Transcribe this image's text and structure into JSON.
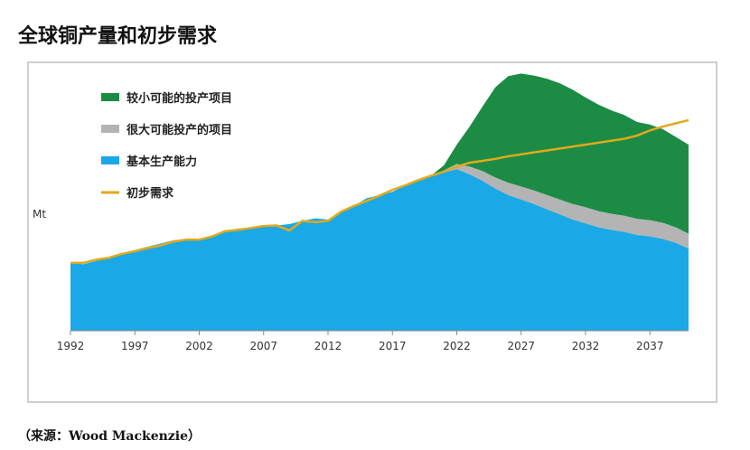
{
  "title": "全球铜产量和初步需求",
  "source": "（来源：Wood Mackenzie）",
  "colors": {
    "probable": "#1c8c45",
    "possible": "#b4b4b4",
    "base": "#1aa8e6",
    "demand": "#e2a91c",
    "axis": "#888888"
  },
  "chart_data": {
    "type": "area",
    "title": "全球铜产量和初步需求",
    "xlabel": "",
    "ylabel": "Mt",
    "xlim": [
      1992,
      2040
    ],
    "ylim": [
      0,
      40
    ],
    "xticks": [
      1992,
      1997,
      2002,
      2007,
      2012,
      2017,
      2022,
      2027,
      2032,
      2037
    ],
    "x": [
      1992,
      1993,
      1994,
      1995,
      1996,
      1997,
      1998,
      1999,
      2000,
      2001,
      2002,
      2003,
      2004,
      2005,
      2006,
      2007,
      2008,
      2009,
      2010,
      2011,
      2012,
      2013,
      2014,
      2015,
      2016,
      2017,
      2018,
      2019,
      2020,
      2021,
      2022,
      2023,
      2024,
      2025,
      2026,
      2027,
      2028,
      2029,
      2030,
      2031,
      2032,
      2033,
      2034,
      2035,
      2036,
      2037,
      2038,
      2039,
      2040
    ],
    "legend_position": "top-left",
    "series": [
      {
        "name": "较小可能的投产项目",
        "kind": "stacked-area",
        "values": [
          0,
          0,
          0,
          0,
          0,
          0,
          0,
          0,
          0,
          0,
          0,
          0,
          0,
          0,
          0,
          0,
          0,
          0,
          0,
          0,
          0,
          0,
          0,
          0,
          0,
          0,
          0,
          0,
          0,
          0.8,
          3.0,
          6.2,
          10.0,
          14.0,
          16.5,
          17.5,
          17.8,
          18.0,
          18.0,
          17.7,
          17.0,
          16.5,
          16.0,
          15.6,
          15.0,
          14.8,
          14.5,
          14.0,
          13.8
        ]
      },
      {
        "name": "很大可能投产的项目",
        "kind": "stacked-area",
        "values": [
          0,
          0,
          0,
          0,
          0,
          0,
          0,
          0,
          0,
          0,
          0,
          0,
          0,
          0,
          0,
          0,
          0,
          0,
          0,
          0,
          0,
          0,
          0,
          0,
          0,
          0,
          0,
          0,
          0,
          0.3,
          0.8,
          1.2,
          1.5,
          1.7,
          1.9,
          2.0,
          2.1,
          2.2,
          2.3,
          2.4,
          2.5,
          2.5,
          2.5,
          2.5,
          2.5,
          2.5,
          2.5,
          2.4,
          2.3
        ]
      },
      {
        "name": "基本生产能力",
        "kind": "stacked-area",
        "values": [
          10.5,
          10.3,
          10.8,
          11.2,
          12.0,
          12.5,
          13.0,
          13.5,
          14.0,
          14.2,
          14.0,
          14.5,
          15.5,
          15.8,
          16.0,
          16.2,
          16.3,
          16.5,
          17.0,
          17.4,
          17.2,
          18.5,
          19.3,
          20.5,
          21.0,
          21.5,
          22.5,
          23.2,
          24.0,
          24.5,
          25.0,
          24.2,
          23.2,
          22.0,
          21.0,
          20.3,
          19.6,
          18.8,
          18.0,
          17.2,
          16.6,
          16.0,
          15.6,
          15.3,
          14.8,
          14.6,
          14.2,
          13.6,
          12.7
        ]
      },
      {
        "name": "初步需求",
        "kind": "line",
        "values": [
          10.5,
          10.5,
          11.0,
          11.3,
          11.9,
          12.3,
          12.8,
          13.2,
          13.8,
          14.1,
          14.1,
          14.6,
          15.4,
          15.6,
          15.9,
          16.2,
          16.3,
          15.5,
          17.0,
          16.8,
          17.0,
          18.4,
          19.3,
          20.1,
          20.9,
          21.8,
          22.5,
          23.3,
          24.0,
          24.6,
          25.4,
          26.0,
          26.3,
          26.6,
          27.0,
          27.3,
          27.6,
          27.9,
          28.2,
          28.5,
          28.8,
          29.1,
          29.4,
          29.7,
          30.2,
          31.0,
          31.6,
          32.1,
          32.6
        ]
      }
    ]
  }
}
